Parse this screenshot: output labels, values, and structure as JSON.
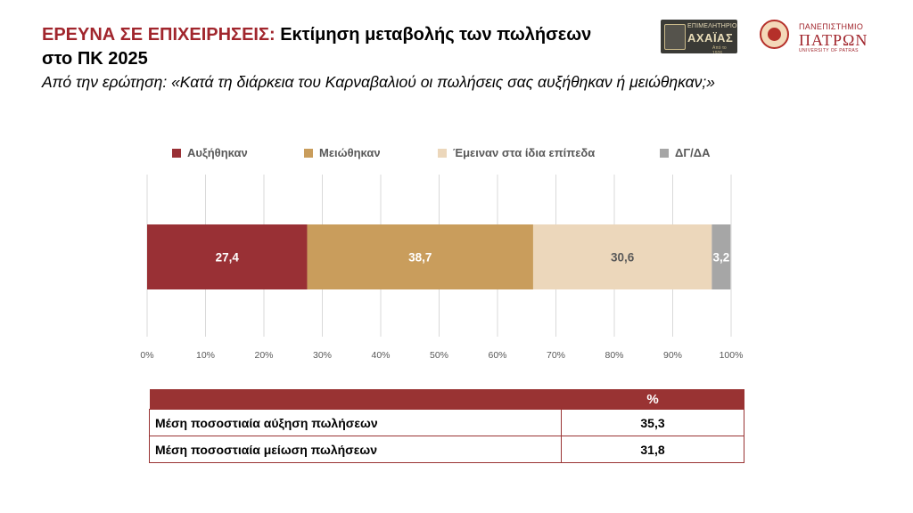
{
  "header": {
    "title_prefix": "ΕΡΕΥΝΑ ΣΕ ΕΠΙΧΕΙΡΗΣΕΙΣ:",
    "title_line1": "Εκτίμηση μεταβολής των πωλήσεων",
    "title_line2": "στο ΠΚ 2025",
    "question": "Από την ερώτηση: «Κατά τη διάρκεια του Καρναβαλιού οι πωλήσεις σας αυξήθηκαν ή μειώθηκαν;»"
  },
  "logos": {
    "chamber": {
      "line1": "ΕΠΙΜΕΛΗΤΗΡΙΟ",
      "line2": "ΑΧΑΪΑΣ",
      "line3": "Από το 1926"
    },
    "university": {
      "line1": "ΠΑΝΕΠΙΣΤΗΜΙΟ",
      "line2": "ΠΑΤΡΩΝ",
      "line3": "UNIVERSITY OF PATRAS"
    }
  },
  "chart_data": {
    "type": "bar",
    "orientation": "horizontal",
    "stacked": true,
    "percent_axis": true,
    "xlim": [
      0,
      100
    ],
    "ticks": [
      "0%",
      "10%",
      "20%",
      "30%",
      "40%",
      "50%",
      "60%",
      "70%",
      "80%",
      "90%",
      "100%"
    ],
    "tick_values": [
      0,
      10,
      20,
      30,
      40,
      50,
      60,
      70,
      80,
      90,
      100
    ],
    "grid": true,
    "legend_position": "top",
    "series": [
      {
        "name": "Αυξήθηκαν",
        "values": [
          27.4
        ],
        "label": "27,4",
        "color": "#993035",
        "label_color": "#ffffff"
      },
      {
        "name": "Μειώθηκαν",
        "values": [
          38.7
        ],
        "label": "38,7",
        "color": "#c99d5c",
        "label_color": "#ffffff"
      },
      {
        "name": "Έμειναν στα ίδια επίπεδα",
        "values": [
          30.6
        ],
        "label": "30,6",
        "color": "#ecd7bb",
        "label_color": "#595959"
      },
      {
        "name": "ΔΓ/ΔΑ",
        "values": [
          3.2
        ],
        "label": "3,2",
        "color": "#a6a6a6",
        "label_color": "#ffffff"
      }
    ]
  },
  "summary_table": {
    "header": "%",
    "rows": [
      {
        "label": "Μέση ποσοστιαία αύξηση πωλήσεων",
        "value": "35,3"
      },
      {
        "label": "Μέση ποσοστιαία μείωση πωλήσεων",
        "value": "31,8"
      }
    ]
  }
}
